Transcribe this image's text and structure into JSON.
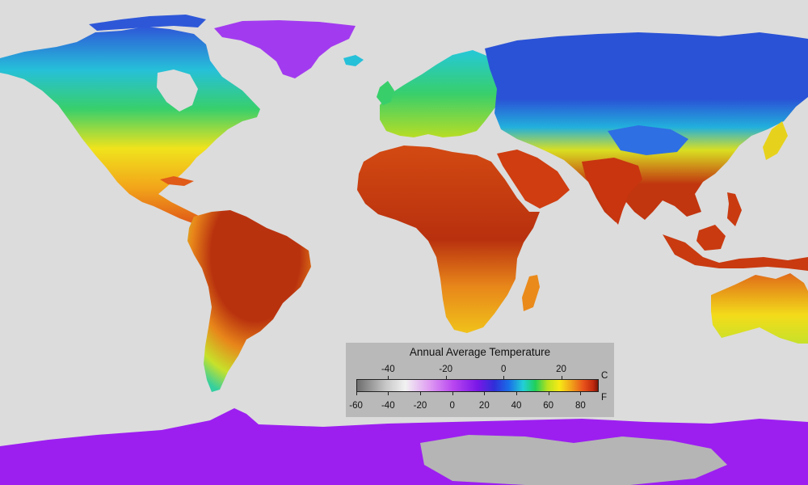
{
  "legend": {
    "title": "Annual Average Temperature",
    "celsius_unit": "C",
    "fahrenheit_unit": "F",
    "scale_min_c": -51,
    "scale_max_c": 33,
    "celsius_ticks": [
      {
        "value": -40,
        "label": "-40"
      },
      {
        "value": -20,
        "label": "-20"
      },
      {
        "value": 0,
        "label": "0"
      },
      {
        "value": 20,
        "label": "20"
      }
    ],
    "fahrenheit_ticks": [
      {
        "value": -60,
        "label": "-60"
      },
      {
        "value": -40,
        "label": "-40"
      },
      {
        "value": -20,
        "label": "-20"
      },
      {
        "value": 0,
        "label": "0"
      },
      {
        "value": 20,
        "label": "20"
      },
      {
        "value": 40,
        "label": "40"
      },
      {
        "value": 60,
        "label": "60"
      },
      {
        "value": 80,
        "label": "80"
      }
    ],
    "color_stops": [
      {
        "pos": 0.0,
        "color": "#6e6e6e"
      },
      {
        "pos": 0.12,
        "color": "#c8c8c8"
      },
      {
        "pos": 0.2,
        "color": "#f2f2f2"
      },
      {
        "pos": 0.3,
        "color": "#df9cf2"
      },
      {
        "pos": 0.4,
        "color": "#b845f0"
      },
      {
        "pos": 0.5,
        "color": "#7a17e8"
      },
      {
        "pos": 0.57,
        "color": "#2f2fd8"
      },
      {
        "pos": 0.63,
        "color": "#1a6fe8"
      },
      {
        "pos": 0.69,
        "color": "#22d0d6"
      },
      {
        "pos": 0.74,
        "color": "#1fcf5a"
      },
      {
        "pos": 0.79,
        "color": "#b6e21f"
      },
      {
        "pos": 0.84,
        "color": "#f7ea16"
      },
      {
        "pos": 0.89,
        "color": "#f1a11a"
      },
      {
        "pos": 0.94,
        "color": "#e8531a"
      },
      {
        "pos": 0.98,
        "color": "#c1290e"
      },
      {
        "pos": 1.0,
        "color": "#7a1608"
      }
    ]
  },
  "map_colors": {
    "ocean": "#dcdcdc",
    "greenland": "#a23bef",
    "antarctica_coast": "#9c1ff0",
    "antarctica_interior": "#b5b5b5",
    "canada_north": "#2e57d8",
    "canada_mid": "#26c0d9",
    "usa_north": "#38cf6b",
    "usa_south": "#f0e31c",
    "mexico": "#f2a51a",
    "central_america": "#e05a18",
    "amazon": "#b9320e",
    "brazil_south": "#e8861a",
    "patagonia": "#c7e12a",
    "andes": "#33cfa0",
    "europe_north": "#25c8d8",
    "europe_south": "#b7dd25",
    "sahara": "#d34a12",
    "africa_tropical": "#b8300e",
    "africa_south": "#f0c21a",
    "madagascar": "#ea8a1a",
    "arabia": "#cf3d10",
    "india": "#c8350f",
    "siberia": "#2a52d6",
    "russia_west": "#22b0dc",
    "tibet": "#2e6fe4",
    "china": "#d9df22",
    "se_asia": "#c1350f",
    "indonesia": "#c93a10",
    "australia_north": "#e06a18",
    "australia_south": "#f3dc1a",
    "japan": "#e6d21c",
    "border": "#333333"
  }
}
